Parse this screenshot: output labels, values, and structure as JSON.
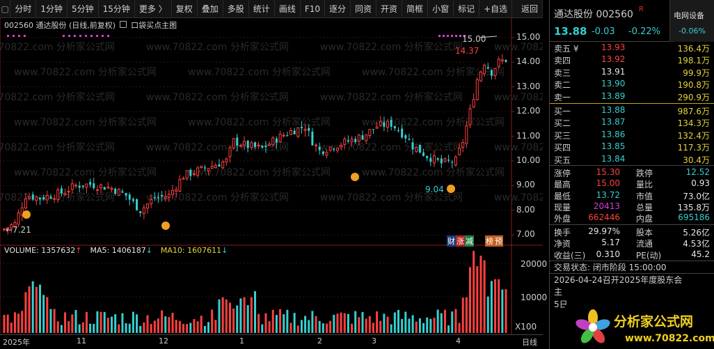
{
  "toolbar": {
    "items": [
      "分时",
      "1分钟",
      "5分钟",
      "15分钟",
      "更多 〉",
      "复权",
      "叠加",
      "多股",
      "统计",
      "画线",
      "F10",
      "逐分",
      "同资",
      "开资",
      "简框",
      "小窗",
      "标记",
      "+自选",
      "返回"
    ]
  },
  "chart": {
    "title": "002560  通达股份 (日线,前复权)",
    "indicator": "口袋买点主图",
    "y_labels": [
      "15.00",
      "14.00",
      "13.00",
      "12.00",
      "11.00",
      "10.00",
      "9.00",
      "8.00",
      "7.00"
    ],
    "annotations": {
      "high_label": "15.00",
      "high2_label": "14.37",
      "low_label": "9.04",
      "start_low_label": "←7.21"
    },
    "badges": [
      "财",
      "涨",
      "减",
      "榜",
      "预"
    ],
    "watermark": "www.70822.com 分析家公式网"
  },
  "volume": {
    "label": "VOLUME: 1357632",
    "ma5": "MA5: 1406187",
    "ma10": "MA10: 1607611",
    "y_labels": [
      "20000",
      "10000"
    ],
    "unit": "X100"
  },
  "date_axis": {
    "labels": [
      "2025年",
      "11",
      "12",
      "1",
      "2",
      "3",
      "4",
      "日线"
    ]
  },
  "panel": {
    "name": "通达股份",
    "code": "002560",
    "r_mark": "R",
    "price": "13.88",
    "change": "-0.03",
    "change_pct": "-0.22%",
    "board_name": "电网设备",
    "board_pct": "-0.06%",
    "sell": [
      {
        "label": "卖五 ¥",
        "price": "13.93",
        "vol": "136.4万"
      },
      {
        "label": "卖四",
        "price": "13.92",
        "vol": "198.1万"
      },
      {
        "label": "卖三",
        "price": "13.91",
        "vol": "99.9万"
      },
      {
        "label": "卖二",
        "price": "13.90",
        "vol": "190.8万"
      },
      {
        "label": "卖一",
        "price": "13.89",
        "vol": "290.9万"
      }
    ],
    "buy": [
      {
        "label": "买一",
        "price": "13.88",
        "vol": "987.6万"
      },
      {
        "label": "买二",
        "price": "13.87",
        "vol": "134.3万"
      },
      {
        "label": "买三",
        "price": "13.86",
        "vol": "132.4万"
      },
      {
        "label": "买四",
        "price": "13.85",
        "vol": "117.3万"
      },
      {
        "label": "买五",
        "price": "13.84",
        "vol": "30.4万"
      }
    ],
    "quote": [
      {
        "l1": "涨停",
        "v1": "15.30",
        "l2": "跌停",
        "v2": "12.52"
      },
      {
        "l1": "最高",
        "v1": "15.00",
        "l2": "量比",
        "v2": "0.93"
      },
      {
        "l1": "最低",
        "v1": "13.72",
        "l2": "市值",
        "v2": "73.0亿"
      },
      {
        "l1": "现量",
        "v1": "20413",
        "l2": "总量",
        "v2": "135.8万"
      },
      {
        "l1": "外盘",
        "v1": "662446",
        "l2": "内盘",
        "v2": "695186"
      }
    ],
    "stats": [
      {
        "l1": "换手",
        "v1": "29.97%",
        "l2": "股本",
        "v2": "5.26亿"
      },
      {
        "l1": "净资",
        "v1": "5.17",
        "l2": "流通",
        "v2": "4.53亿"
      },
      {
        "l1": "收益(三)",
        "v1": "0.310",
        "l2": "PE(动)",
        "v2": "45.2"
      }
    ],
    "status": "交易状态: 闭市阶段 15:00:00",
    "notice": "2026-04-24召开2025年度股东会",
    "more1": "主",
    "more2": "5日"
  },
  "logo": {
    "text": "分析家公式网",
    "url": "www.70822.com"
  },
  "colors": {
    "up": "#ff4040",
    "down": "#35d0d0",
    "ma5": "#e6e6e6",
    "ma10": "#e6d43a"
  }
}
